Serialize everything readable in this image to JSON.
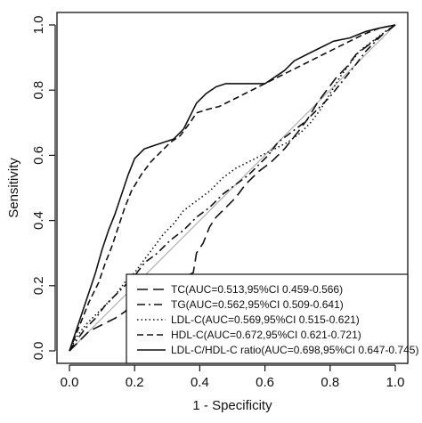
{
  "chart_data": {
    "type": "line",
    "xlabel": "1 - Specificity",
    "ylabel": "Sensitivity",
    "xlim": [
      0,
      1
    ],
    "ylim": [
      0,
      1
    ],
    "xticks": [
      "0.0",
      "0.2",
      "0.4",
      "0.6",
      "0.8",
      "1.0"
    ],
    "yticks": [
      "0.0",
      "0.2",
      "0.4",
      "0.6",
      "0.8",
      "1.0"
    ],
    "grid": false,
    "legend_position": "bottom-right",
    "reference_line": {
      "from": [
        0,
        0
      ],
      "to": [
        1,
        1
      ],
      "color": "#b0b0b0"
    },
    "series": [
      {
        "name": "TC(AUC=0.513,95%CI 0.459-0.566)",
        "dash": "long",
        "points": [
          [
            0,
            0
          ],
          [
            0.03,
            0.03
          ],
          [
            0.06,
            0.06
          ],
          [
            0.1,
            0.08
          ],
          [
            0.14,
            0.1
          ],
          [
            0.17,
            0.12
          ],
          [
            0.19,
            0.14
          ],
          [
            0.22,
            0.16
          ],
          [
            0.25,
            0.19
          ],
          [
            0.28,
            0.2
          ],
          [
            0.32,
            0.22
          ],
          [
            0.36,
            0.23
          ],
          [
            0.38,
            0.24
          ],
          [
            0.39,
            0.3
          ],
          [
            0.41,
            0.33
          ],
          [
            0.43,
            0.38
          ],
          [
            0.45,
            0.41
          ],
          [
            0.48,
            0.44
          ],
          [
            0.51,
            0.47
          ],
          [
            0.54,
            0.51
          ],
          [
            0.58,
            0.55
          ],
          [
            0.62,
            0.58
          ],
          [
            0.66,
            0.62
          ],
          [
            0.7,
            0.67
          ],
          [
            0.73,
            0.71
          ],
          [
            0.76,
            0.76
          ],
          [
            0.79,
            0.8
          ],
          [
            0.82,
            0.84
          ],
          [
            0.85,
            0.87
          ],
          [
            0.88,
            0.91
          ],
          [
            0.92,
            0.94
          ],
          [
            0.96,
            0.97
          ],
          [
            1,
            1
          ]
        ]
      },
      {
        "name": "TG(AUC=0.562,95%CI 0.509-0.641)",
        "dash": "dashdot",
        "points": [
          [
            0,
            0
          ],
          [
            0.02,
            0.03
          ],
          [
            0.05,
            0.07
          ],
          [
            0.08,
            0.1
          ],
          [
            0.11,
            0.14
          ],
          [
            0.14,
            0.17
          ],
          [
            0.17,
            0.2
          ],
          [
            0.2,
            0.23
          ],
          [
            0.23,
            0.27
          ],
          [
            0.27,
            0.3
          ],
          [
            0.31,
            0.34
          ],
          [
            0.35,
            0.37
          ],
          [
            0.39,
            0.41
          ],
          [
            0.43,
            0.44
          ],
          [
            0.47,
            0.48
          ],
          [
            0.51,
            0.51
          ],
          [
            0.55,
            0.54
          ],
          [
            0.58,
            0.57
          ],
          [
            0.61,
            0.6
          ],
          [
            0.64,
            0.64
          ],
          [
            0.68,
            0.67
          ],
          [
            0.72,
            0.7
          ],
          [
            0.76,
            0.74
          ],
          [
            0.8,
            0.78
          ],
          [
            0.84,
            0.83
          ],
          [
            0.88,
            0.88
          ],
          [
            0.91,
            0.92
          ],
          [
            0.94,
            0.95
          ],
          [
            0.97,
            0.98
          ],
          [
            1,
            1
          ]
        ]
      },
      {
        "name": "LDL-C(AUC=0.569,95%CI 0.515-0.621)",
        "dash": "dotted",
        "points": [
          [
            0,
            0
          ],
          [
            0.02,
            0.04
          ],
          [
            0.05,
            0.08
          ],
          [
            0.08,
            0.11
          ],
          [
            0.11,
            0.14
          ],
          [
            0.14,
            0.17
          ],
          [
            0.17,
            0.21
          ],
          [
            0.2,
            0.24
          ],
          [
            0.23,
            0.28
          ],
          [
            0.26,
            0.32
          ],
          [
            0.29,
            0.36
          ],
          [
            0.32,
            0.39
          ],
          [
            0.35,
            0.43
          ],
          [
            0.39,
            0.46
          ],
          [
            0.43,
            0.49
          ],
          [
            0.47,
            0.53
          ],
          [
            0.51,
            0.56
          ],
          [
            0.55,
            0.58
          ],
          [
            0.59,
            0.6
          ],
          [
            0.63,
            0.62
          ],
          [
            0.67,
            0.64
          ],
          [
            0.71,
            0.67
          ],
          [
            0.74,
            0.7
          ],
          [
            0.77,
            0.74
          ],
          [
            0.8,
            0.79
          ],
          [
            0.83,
            0.84
          ],
          [
            0.86,
            0.88
          ],
          [
            0.89,
            0.92
          ],
          [
            0.93,
            0.95
          ],
          [
            0.97,
            0.98
          ],
          [
            1,
            1
          ]
        ]
      },
      {
        "name": "HDL-C(AUC=0.672,95%CI 0.621-0.721)",
        "dash": "medium",
        "points": [
          [
            0,
            0
          ],
          [
            0.02,
            0.05
          ],
          [
            0.04,
            0.1
          ],
          [
            0.06,
            0.15
          ],
          [
            0.09,
            0.21
          ],
          [
            0.11,
            0.27
          ],
          [
            0.13,
            0.32
          ],
          [
            0.15,
            0.38
          ],
          [
            0.17,
            0.44
          ],
          [
            0.19,
            0.49
          ],
          [
            0.22,
            0.54
          ],
          [
            0.25,
            0.58
          ],
          [
            0.28,
            0.61
          ],
          [
            0.31,
            0.64
          ],
          [
            0.34,
            0.66
          ],
          [
            0.37,
            0.7
          ],
          [
            0.39,
            0.73
          ],
          [
            0.42,
            0.74
          ],
          [
            0.46,
            0.75
          ],
          [
            0.5,
            0.77
          ],
          [
            0.54,
            0.79
          ],
          [
            0.58,
            0.81
          ],
          [
            0.62,
            0.83
          ],
          [
            0.66,
            0.85
          ],
          [
            0.7,
            0.87
          ],
          [
            0.74,
            0.89
          ],
          [
            0.78,
            0.91
          ],
          [
            0.82,
            0.93
          ],
          [
            0.86,
            0.95
          ],
          [
            0.9,
            0.97
          ],
          [
            0.95,
            0.99
          ],
          [
            1,
            1
          ]
        ]
      },
      {
        "name": "LDL-C/HDL-C ratio(AUC=0.698,95%CI 0.647-0.745)",
        "dash": "solid",
        "points": [
          [
            0,
            0
          ],
          [
            0.02,
            0.06
          ],
          [
            0.04,
            0.12
          ],
          [
            0.06,
            0.18
          ],
          [
            0.08,
            0.24
          ],
          [
            0.1,
            0.31
          ],
          [
            0.12,
            0.37
          ],
          [
            0.14,
            0.42
          ],
          [
            0.16,
            0.48
          ],
          [
            0.18,
            0.54
          ],
          [
            0.2,
            0.59
          ],
          [
            0.23,
            0.62
          ],
          [
            0.26,
            0.63
          ],
          [
            0.29,
            0.64
          ],
          [
            0.32,
            0.65
          ],
          [
            0.35,
            0.68
          ],
          [
            0.37,
            0.72
          ],
          [
            0.39,
            0.76
          ],
          [
            0.42,
            0.79
          ],
          [
            0.45,
            0.81
          ],
          [
            0.48,
            0.82
          ],
          [
            0.52,
            0.82
          ],
          [
            0.56,
            0.82
          ],
          [
            0.6,
            0.82
          ],
          [
            0.63,
            0.84
          ],
          [
            0.66,
            0.86
          ],
          [
            0.69,
            0.89
          ],
          [
            0.73,
            0.91
          ],
          [
            0.77,
            0.93
          ],
          [
            0.81,
            0.95
          ],
          [
            0.86,
            0.96
          ],
          [
            0.91,
            0.98
          ],
          [
            0.95,
            0.99
          ],
          [
            1,
            1
          ]
        ]
      }
    ]
  }
}
